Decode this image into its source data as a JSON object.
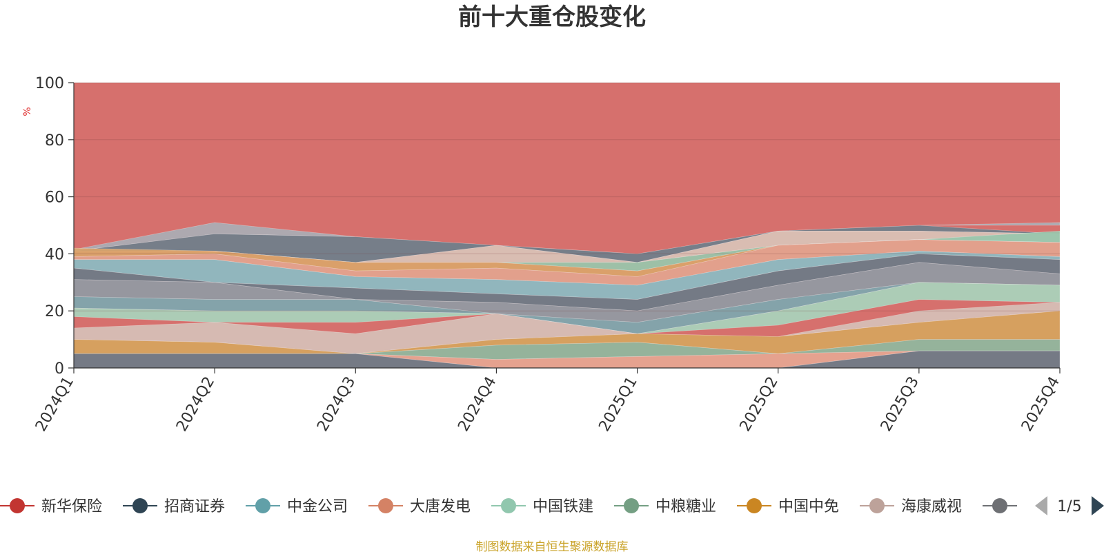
{
  "chart_data": {
    "type": "area",
    "stacked": true,
    "title": "前十大重仓股变化",
    "ylabel": "%",
    "ylim": [
      0,
      100
    ],
    "yticks": [
      "0",
      "20",
      "40",
      "60",
      "80",
      "100"
    ],
    "categories": [
      "2024Q1",
      "2024Q2",
      "2024Q3",
      "2024Q4",
      "2025Q1",
      "2025Q2",
      "2025Q3",
      "2025Q4"
    ],
    "bands": [
      {
        "color": "#a9aeb6",
        "top": [
          41.5,
          51,
          46,
          43,
          40,
          48,
          50,
          51
        ],
        "bottom": [
          41,
          47,
          46,
          43,
          40,
          48,
          50,
          50
        ]
      },
      {
        "color": "#6e7f8c",
        "top": [
          41,
          47,
          46,
          43,
          40,
          48,
          50,
          47
        ],
        "bottom": [
          41,
          41,
          37,
          43,
          37,
          48,
          48,
          47
        ]
      },
      {
        "color": "#d9c3b8",
        "top": [
          41,
          41,
          37,
          43,
          37,
          48,
          48,
          47
        ],
        "bottom": [
          41,
          41,
          37,
          37,
          37,
          43,
          45,
          44
        ]
      },
      {
        "color": "#98c7ad",
        "top": [
          41,
          41,
          37,
          37,
          37,
          43,
          45,
          48
        ],
        "bottom": [
          41,
          41,
          37,
          37,
          34,
          43,
          45,
          44
        ]
      },
      {
        "color": "#daa46a",
        "top": [
          42,
          41,
          37,
          37,
          34,
          43,
          45,
          44
        ],
        "bottom": [
          39,
          40,
          34,
          35,
          32,
          43,
          45,
          44
        ]
      },
      {
        "color": "#e3a48f",
        "top": [
          39,
          40,
          34,
          35,
          32,
          43,
          45,
          44
        ],
        "bottom": [
          38,
          38,
          32,
          31,
          29,
          38,
          41,
          39
        ]
      },
      {
        "color": "#8bbcc4",
        "top": [
          38,
          38,
          32,
          31,
          29,
          38,
          41,
          39
        ],
        "bottom": [
          35,
          30,
          28,
          26,
          24,
          34,
          40,
          38
        ]
      },
      {
        "color": "#6b7b88",
        "top": [
          35,
          30,
          28,
          26,
          24,
          34,
          40,
          38
        ],
        "bottom": [
          31,
          30,
          24,
          23,
          20,
          29,
          37,
          33
        ]
      },
      {
        "color": "#909aa4",
        "top": [
          31,
          30,
          24,
          23,
          20,
          29,
          37,
          33
        ],
        "bottom": [
          25,
          24,
          24,
          19,
          16,
          24,
          30,
          29
        ]
      },
      {
        "color": "#7da7b0",
        "top": [
          25,
          24,
          24,
          19,
          16,
          24,
          30,
          29
        ],
        "bottom": [
          21,
          20,
          20,
          19,
          12,
          20,
          30,
          29
        ]
      },
      {
        "color": "#a8d4bd",
        "top": [
          21,
          20,
          20,
          19,
          12,
          20,
          30,
          29
        ],
        "bottom": [
          18,
          16,
          16,
          19,
          12,
          15,
          24,
          23
        ]
      },
      {
        "color": "#d6c0b9",
        "top": [
          14,
          16,
          12,
          19,
          12,
          11,
          20,
          23
        ],
        "bottom": [
          10,
          9,
          5,
          10,
          12,
          11,
          16,
          20
        ]
      },
      {
        "color": "#d6a45e",
        "top": [
          10,
          9,
          5,
          10,
          12,
          11,
          16,
          20
        ],
        "bottom": [
          5,
          5,
          5,
          8,
          9,
          5,
          10,
          10
        ]
      },
      {
        "color": "#8fb8a0",
        "top": [
          5,
          5,
          5,
          8,
          9,
          5,
          10,
          10
        ],
        "bottom": [
          5,
          5,
          5,
          3,
          4,
          5,
          6,
          6
        ]
      },
      {
        "color": "#e6a693",
        "top": [
          5,
          5,
          5,
          3,
          4,
          5,
          6,
          6
        ],
        "bottom": [
          5,
          5,
          5,
          0,
          0,
          0,
          6,
          6
        ]
      },
      {
        "color": "#6c7b88",
        "top": [
          5,
          5,
          5,
          0,
          0,
          0,
          6,
          6
        ],
        "bottom": [
          0,
          0,
          0,
          0,
          0,
          0,
          0,
          0
        ]
      }
    ],
    "background_color": "#d6706d",
    "legend": {
      "position": "bottom",
      "items": [
        {
          "name": "新华保险",
          "color": "#c23531"
        },
        {
          "name": "招商证券",
          "color": "#2f4554"
        },
        {
          "name": "中金公司",
          "color": "#61a0a8"
        },
        {
          "name": "大唐发电",
          "color": "#d48265"
        },
        {
          "name": "中国铁建",
          "color": "#91c7ae"
        },
        {
          "name": "中粮糖业",
          "color": "#749f83"
        },
        {
          "name": "中国中免",
          "color": "#ca8622"
        },
        {
          "name": "海康威视",
          "color": "#bda29a"
        },
        {
          "name": "",
          "color": "#6e7074"
        }
      ],
      "page": "1/5"
    }
  },
  "footer": "制图数据来自恒生聚源数据库"
}
